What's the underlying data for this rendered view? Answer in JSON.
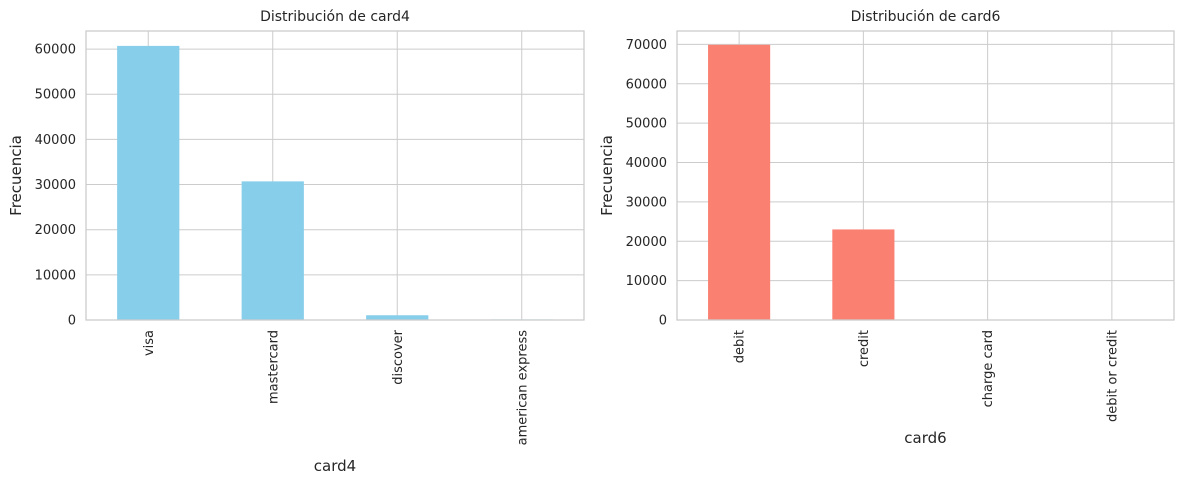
{
  "chart_data": [
    {
      "type": "bar",
      "title": "Distribución de card4",
      "xlabel": "card4",
      "ylabel": "Frecuencia",
      "categories": [
        "visa",
        "mastercard",
        "discover",
        "american express"
      ],
      "values": [
        60700,
        30700,
        1050,
        130
      ],
      "ylim": [
        0,
        64000
      ],
      "yticks": [
        0,
        10000,
        20000,
        30000,
        40000,
        50000,
        60000
      ],
      "color": "#87CEEB",
      "grid": true
    },
    {
      "type": "bar",
      "title": "Distribución de card6",
      "xlabel": "card6",
      "ylabel": "Frecuencia",
      "categories": [
        "debit",
        "credit",
        "charge card",
        "debit or credit"
      ],
      "values": [
        69900,
        23000,
        20,
        20
      ],
      "ylim": [
        0,
        73400
      ],
      "yticks": [
        0,
        10000,
        20000,
        30000,
        40000,
        50000,
        60000,
        70000
      ],
      "color": "#FA8072",
      "grid": true
    }
  ]
}
